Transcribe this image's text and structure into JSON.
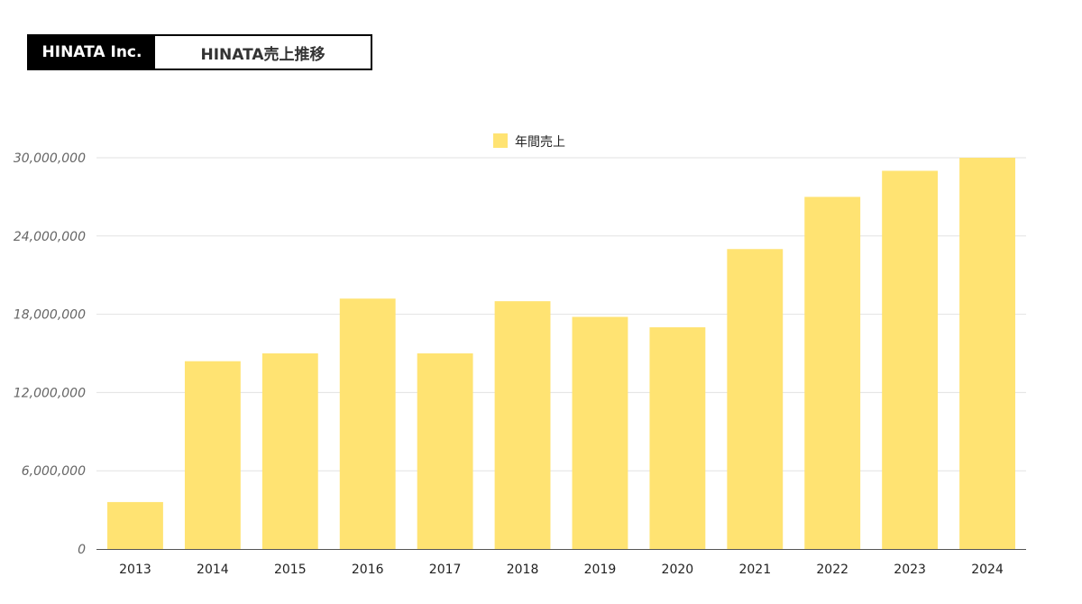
{
  "header": {
    "company": "HINATA Inc.",
    "title": "HINATA売上推移"
  },
  "chart_data": {
    "type": "bar",
    "categories": [
      "2013",
      "2014",
      "2015",
      "2016",
      "2017",
      "2018",
      "2019",
      "2020",
      "2021",
      "2022",
      "2023",
      "2024"
    ],
    "series": [
      {
        "name": "年間売上",
        "color": "#FFE372",
        "values": [
          3600000,
          14400000,
          15000000,
          19200000,
          15000000,
          19000000,
          17800000,
          17000000,
          23000000,
          27000000,
          29000000,
          30000000
        ]
      }
    ],
    "yticks": [
      0,
      6000000,
      12000000,
      18000000,
      24000000,
      30000000
    ],
    "ytick_labels": [
      "0",
      "6,000,000",
      "12,000,000",
      "18,000,000",
      "24,000,000",
      "30,000,000"
    ],
    "ylim": [
      0,
      30000000
    ],
    "grid": true,
    "legend_position": "top-center",
    "xlabel": "",
    "ylabel": ""
  }
}
